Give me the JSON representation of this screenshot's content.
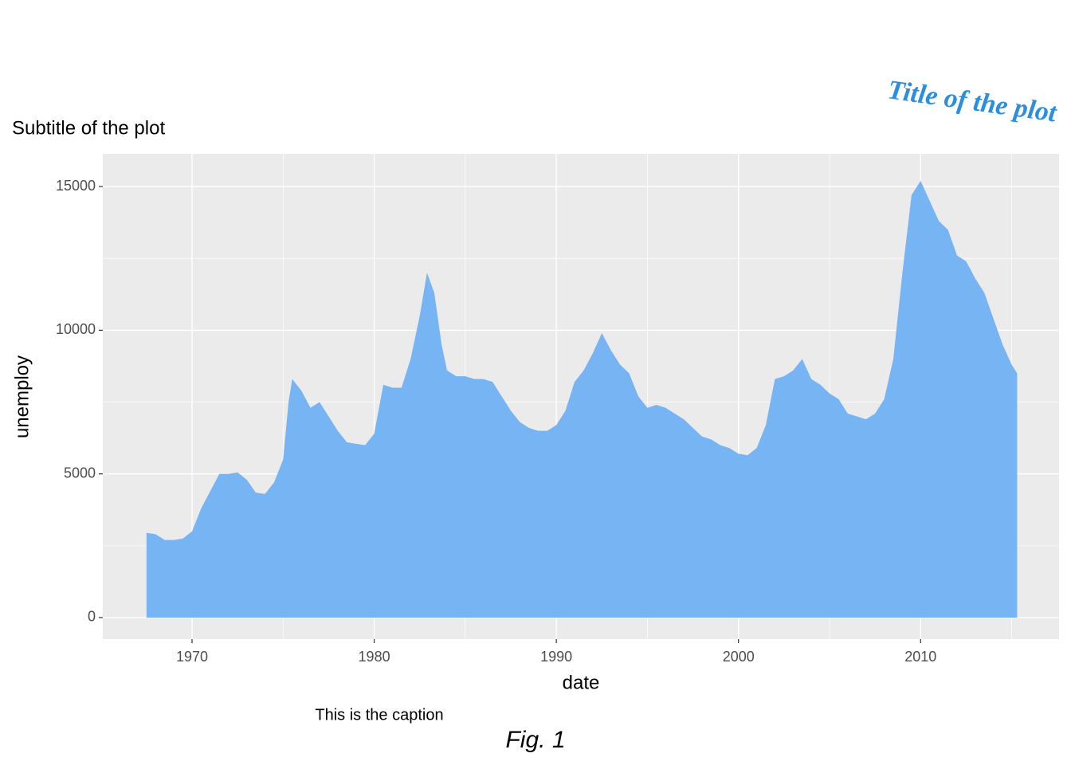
{
  "chart_data": {
    "type": "area",
    "title": "Title of the plot",
    "subtitle": "Subtitle of the plot",
    "caption": "This is the caption",
    "tag": "Fig. 1",
    "x_label": "date",
    "y_label": "unemploy",
    "color": "#74b3f3",
    "title_color": "#2b8fdd",
    "grid": true,
    "x": [
      1967.5,
      1968.0,
      1968.5,
      1969.0,
      1969.5,
      1970.0,
      1970.5,
      1971.0,
      1971.5,
      1972.0,
      1972.5,
      1973.0,
      1973.5,
      1974.0,
      1974.5,
      1975.0,
      1975.3,
      1975.5,
      1976.0,
      1976.5,
      1977.0,
      1977.5,
      1978.0,
      1978.5,
      1979.0,
      1979.5,
      1980.0,
      1980.5,
      1981.0,
      1981.5,
      1982.0,
      1982.5,
      1982.9,
      1983.3,
      1983.7,
      1984.0,
      1984.5,
      1985.0,
      1985.5,
      1986.0,
      1986.5,
      1987.0,
      1987.5,
      1988.0,
      1988.5,
      1989.0,
      1989.5,
      1990.0,
      1990.5,
      1991.0,
      1991.5,
      1992.0,
      1992.5,
      1993.0,
      1993.5,
      1994.0,
      1994.5,
      1995.0,
      1995.5,
      1996.0,
      1996.5,
      1997.0,
      1997.5,
      1998.0,
      1998.5,
      1999.0,
      1999.5,
      2000.0,
      2000.5,
      2001.0,
      2001.5,
      2002.0,
      2002.5,
      2003.0,
      2003.5,
      2004.0,
      2004.5,
      2005.0,
      2005.5,
      2006.0,
      2006.5,
      2007.0,
      2007.5,
      2008.0,
      2008.5,
      2009.0,
      2009.5,
      2010.0,
      2010.5,
      2011.0,
      2011.5,
      2012.0,
      2012.5,
      2013.0,
      2013.5,
      2014.0,
      2014.5,
      2015.0,
      2015.3
    ],
    "values": [
      2950,
      2900,
      2700,
      2700,
      2750,
      3000,
      3800,
      4400,
      5000,
      5000,
      5050,
      4800,
      4350,
      4300,
      4700,
      5500,
      7500,
      8300,
      7900,
      7300,
      7500,
      7000,
      6500,
      6100,
      6050,
      6000,
      6400,
      8100,
      8000,
      8000,
      9000,
      10500,
      12000,
      11300,
      9500,
      8600,
      8400,
      8400,
      8300,
      8300,
      8200,
      7700,
      7200,
      6800,
      6600,
      6500,
      6500,
      6700,
      7200,
      8200,
      8600,
      9200,
      9900,
      9300,
      8800,
      8500,
      7700,
      7300,
      7400,
      7300,
      7100,
      6900,
      6600,
      6300,
      6200,
      6000,
      5900,
      5700,
      5650,
      5900,
      6700,
      8300,
      8400,
      8600,
      9000,
      8300,
      8100,
      7800,
      7600,
      7100,
      7000,
      6900,
      7100,
      7600,
      9000,
      12000,
      14700,
      15200,
      14500,
      13800,
      13500,
      12600,
      12400,
      11800,
      11300,
      10400,
      9500,
      8800,
      8500
    ],
    "xlim": [
      1965.1,
      2017.6
    ],
    "xticks": [
      1970,
      1980,
      1990,
      2000,
      2010
    ],
    "xminor": [
      1975,
      1985,
      1995,
      2005,
      2015
    ],
    "ylim": [
      -750,
      16140
    ],
    "yticks": [
      0,
      5000,
      10000,
      15000
    ],
    "yminor": [
      2500,
      7500,
      12500
    ]
  }
}
